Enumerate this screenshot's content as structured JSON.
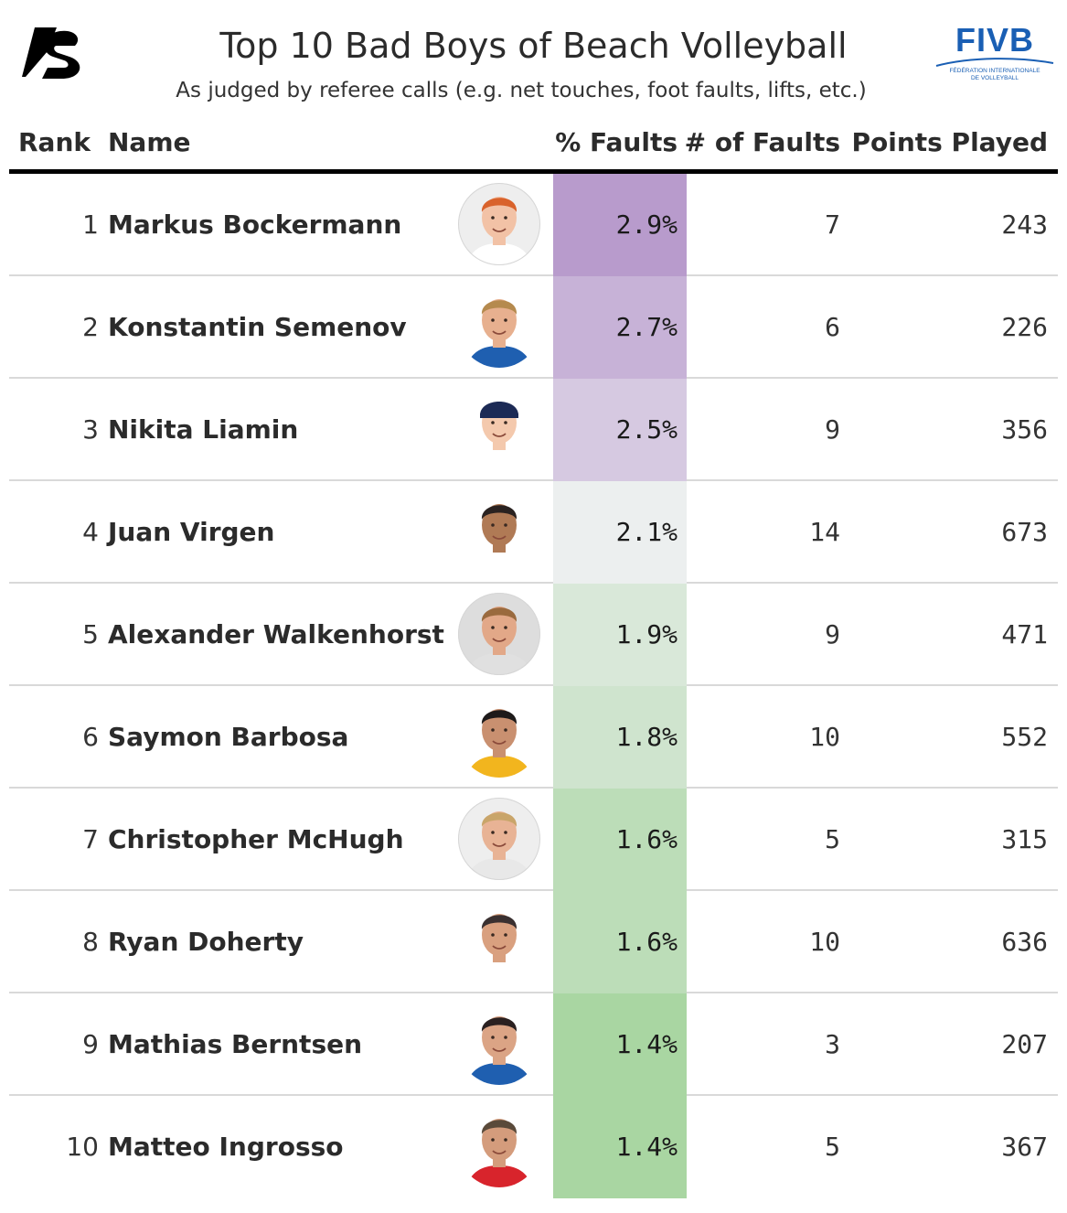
{
  "title": "Top 10 Bad Boys of Beach Volleyball",
  "subtitle": "As judged by referee calls (e.g. net touches, foot faults, lifts, etc.)",
  "logos": {
    "left_icon": "stylized-s-logo-icon",
    "right_text": "FIVB",
    "right_subtitle_line1": "FÉDÉRATION INTERNATIONALE",
    "right_subtitle_line2": "DE VOLLEYBALL",
    "right_color": "#1a5fb4"
  },
  "headers": {
    "rank": "Rank",
    "name": "Name",
    "pct_faults": "% Faults",
    "num_faults": "# of Faults",
    "points_played": "Points Played"
  },
  "colors": {
    "high": "#b89bcc",
    "mid": "#f1f1f4",
    "low": "#a9d6a2",
    "header_rule": "#000000",
    "row_rule": "#d9d9d9"
  },
  "chart_data": {
    "type": "table",
    "columns": [
      "Rank",
      "Name",
      "% Faults",
      "# of Faults",
      "Points Played"
    ],
    "rows": [
      {
        "rank": "1",
        "name": "Markus Bockermann",
        "pct": "2.9%",
        "pct_value": 2.9,
        "faults": "7",
        "points": "243"
      },
      {
        "rank": "2",
        "name": "Konstantin Semenov",
        "pct": "2.7%",
        "pct_value": 2.7,
        "faults": "6",
        "points": "226"
      },
      {
        "rank": "3",
        "name": "Nikita Liamin",
        "pct": "2.5%",
        "pct_value": 2.5,
        "faults": "9",
        "points": "356"
      },
      {
        "rank": "4",
        "name": "Juan Virgen",
        "pct": "2.1%",
        "pct_value": 2.1,
        "faults": "14",
        "points": "673"
      },
      {
        "rank": "5",
        "name": "Alexander Walkenhorst",
        "pct": "1.9%",
        "pct_value": 1.9,
        "faults": "9",
        "points": "471"
      },
      {
        "rank": "6",
        "name": "Saymon Barbosa",
        "pct": "1.8%",
        "pct_value": 1.8,
        "faults": "10",
        "points": "552"
      },
      {
        "rank": "7",
        "name": "Christopher McHugh",
        "pct": "1.6%",
        "pct_value": 1.6,
        "faults": "5",
        "points": "315"
      },
      {
        "rank": "8",
        "name": "Ryan Doherty",
        "pct": "1.6%",
        "pct_value": 1.6,
        "faults": "10",
        "points": "636"
      },
      {
        "rank": "9",
        "name": "Mathias Berntsen",
        "pct": "1.4%",
        "pct_value": 1.4,
        "faults": "3",
        "points": "207"
      },
      {
        "rank": "10",
        "name": "Matteo Ingrosso",
        "pct": "1.4%",
        "pct_value": 1.4,
        "faults": "5",
        "points": "367"
      }
    ]
  },
  "avatars": [
    {
      "icon": "player-headshot-icon",
      "bg": "#eeeeee",
      "skin": "#f2c2a6",
      "hair": "#d9622b",
      "shirt": "#ffffff",
      "hat": ""
    },
    {
      "icon": "player-headshot-icon",
      "bg": "",
      "skin": "#e7b08f",
      "hair": "#b58a4e",
      "shirt": "#1f5fb0",
      "hat": ""
    },
    {
      "icon": "player-headshot-icon",
      "bg": "",
      "skin": "#f4c9ad",
      "hair": "#e8d28a",
      "shirt": "#ffffff",
      "hat": "#1c2a55"
    },
    {
      "icon": "player-headshot-icon",
      "bg": "",
      "skin": "#b07a55",
      "hair": "#2a2220",
      "shirt": "#ffffff",
      "hat": ""
    },
    {
      "icon": "player-headshot-icon",
      "bg": "#dddddd",
      "skin": "#e2a888",
      "hair": "#9a6a3e",
      "shirt": "#e0e0e0",
      "hat": ""
    },
    {
      "icon": "player-headshot-icon",
      "bg": "",
      "skin": "#c99070",
      "hair": "#1e1a1a",
      "shirt": "#f2b51e",
      "hat": ""
    },
    {
      "icon": "player-headshot-icon",
      "bg": "#eeeeee",
      "skin": "#e8b395",
      "hair": "#c9a56a",
      "shirt": "#e8e8e8",
      "hat": ""
    },
    {
      "icon": "player-headshot-icon",
      "bg": "",
      "skin": "#d9a07f",
      "hair": "#3a3030",
      "shirt": "#ffffff",
      "hat": ""
    },
    {
      "icon": "player-headshot-icon",
      "bg": "",
      "skin": "#dba485",
      "hair": "#2a2020",
      "shirt": "#1f5fb0",
      "hat": ""
    },
    {
      "icon": "player-headshot-icon",
      "bg": "",
      "skin": "#d49c7c",
      "hair": "#5a4a3a",
      "shirt": "#d8242c",
      "hat": ""
    }
  ]
}
